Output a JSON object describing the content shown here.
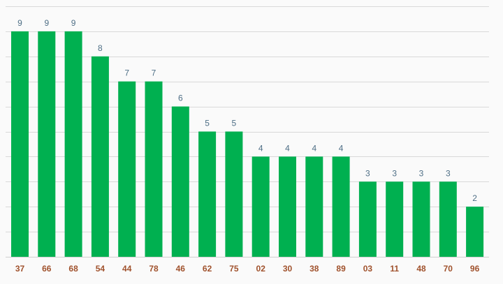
{
  "colors": {
    "bar": "#00b050",
    "category_label": "#a0522d",
    "value_label": "#4f6f86",
    "gridline": "#d9d9d9",
    "background": "#fafafa"
  },
  "chart_data": {
    "type": "bar",
    "categories": [
      "37",
      "66",
      "68",
      "54",
      "44",
      "78",
      "46",
      "62",
      "75",
      "02",
      "30",
      "38",
      "89",
      "03",
      "11",
      "48",
      "70",
      "96"
    ],
    "values": [
      9,
      9,
      9,
      8,
      7,
      7,
      6,
      5,
      5,
      4,
      4,
      4,
      4,
      3,
      3,
      3,
      3,
      2
    ],
    "title": "",
    "xlabel": "",
    "ylabel": "",
    "ylim": [
      0,
      10
    ],
    "grid": true,
    "legend": "none",
    "data_labels": true
  }
}
